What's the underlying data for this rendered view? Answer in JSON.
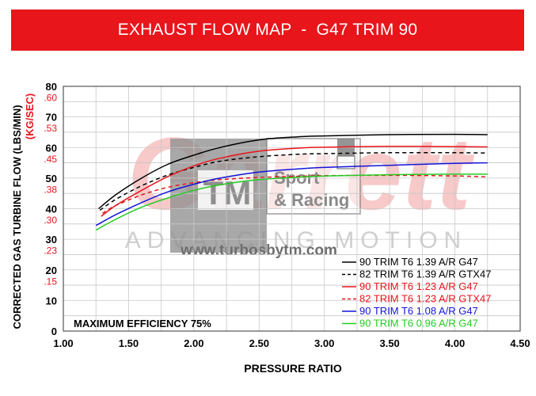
{
  "header": {
    "title": "EXHAUST FLOW MAP  -  G47 TRIM 90"
  },
  "colors": {
    "banner": "#e8151b",
    "black": "#000000",
    "red": "#e8151b",
    "blue": "#1414d8",
    "green": "#22cc22"
  },
  "watermark": {
    "brand": "Garrett",
    "tagline": "ADVANCING MOTION",
    "logo_mark": "TM",
    "logo_line1": "Sport",
    "logo_line2": "& Racing",
    "url": "www.turbosbytm.com"
  },
  "chart_data": {
    "type": "line",
    "xlabel": "PRESSURE RATIO",
    "ylabel": "CORRECTED GAS TURBINE FLOW (LBS/MIN)",
    "ylabel2": "(KG/SEC)",
    "xlim": [
      1.0,
      4.5
    ],
    "ylim": [
      0,
      80
    ],
    "x_ticks": [
      "1.00",
      "1.50",
      "2.00",
      "2.50",
      "3.00",
      "3.50",
      "4.00",
      "4.50"
    ],
    "y_ticks": [
      "0",
      "10",
      "20",
      "30",
      "40",
      "50",
      "60",
      "70",
      "80"
    ],
    "y2_ticks": [
      {
        "label": ".15",
        "at": 16.5
      },
      {
        "label": ".23",
        "at": 26.5
      },
      {
        "label": ".30",
        "at": 36.5
      },
      {
        "label": ".38",
        "at": 46.5
      },
      {
        "label": ".45",
        "at": 56.5
      },
      {
        "label": ".53",
        "at": 66.5
      },
      {
        "label": ".60",
        "at": 76.5
      }
    ],
    "annotation": "MAXIMUM EFFICIENCY 75%",
    "grid": true,
    "legend_position": "bottom-right",
    "series": [
      {
        "name": "90 TRIM T6 1.39 A/R G47",
        "color": "#000000",
        "dash": false,
        "x": [
          1.27,
          1.4,
          1.6,
          1.8,
          2.0,
          2.2,
          2.5,
          2.8,
          3.0,
          3.5,
          4.0,
          4.25
        ],
        "y": [
          40,
          44.5,
          50,
          54.5,
          57.5,
          60,
          62.5,
          63.5,
          63.8,
          64.2,
          64.3,
          64.2
        ]
      },
      {
        "name": "82 TRIM T6 1.39 A/R GTX47",
        "color": "#000000",
        "dash": true,
        "x": [
          1.28,
          1.4,
          1.6,
          1.8,
          2.0,
          2.2,
          2.5,
          2.8,
          3.0,
          3.5,
          4.0,
          4.25
        ],
        "y": [
          39.5,
          43,
          47.5,
          51,
          53.5,
          55.5,
          57,
          57.8,
          58,
          58.3,
          58.3,
          58.2
        ]
      },
      {
        "name": "90 TRIM T6 1.23 A/R G47",
        "color": "#e8151b",
        "dash": false,
        "x": [
          1.29,
          1.4,
          1.6,
          1.8,
          2.0,
          2.2,
          2.5,
          2.8,
          3.0,
          3.5,
          4.0,
          4.25
        ],
        "y": [
          37.5,
          41,
          46,
          50.5,
          54,
          56.5,
          58.8,
          59.8,
          60.1,
          60.4,
          60.3,
          60.2
        ]
      },
      {
        "name": "82 TRIM T6 1.23 A/R GTX47",
        "color": "#e8151b",
        "dash": true,
        "x": [
          1.3,
          1.4,
          1.6,
          1.8,
          2.0,
          2.2,
          2.5,
          2.8,
          3.0,
          3.5,
          4.0,
          4.25
        ],
        "y": [
          38.5,
          41,
          44.5,
          47,
          48.5,
          49.5,
          50.2,
          50.6,
          50.8,
          50.9,
          50.7,
          50.4
        ]
      },
      {
        "name": "90 TRIM T6 1.08 A/R G47",
        "color": "#1414d8",
        "dash": false,
        "x": [
          1.25,
          1.4,
          1.6,
          1.8,
          2.0,
          2.2,
          2.5,
          2.8,
          3.0,
          3.5,
          4.0,
          4.25
        ],
        "y": [
          34.5,
          38,
          42,
          45.5,
          48,
          50,
          52,
          53,
          53.5,
          54.2,
          54.8,
          55
        ]
      },
      {
        "name": "90 TRIM T6 0.96 A/R G47",
        "color": "#22cc22",
        "dash": false,
        "x": [
          1.25,
          1.4,
          1.6,
          1.8,
          2.0,
          2.2,
          2.5,
          2.8,
          3.0,
          3.5,
          4.0,
          4.25
        ],
        "y": [
          33,
          36.5,
          40.5,
          43.5,
          46,
          47.8,
          49.5,
          50.3,
          50.7,
          51.1,
          51.3,
          51.3
        ]
      }
    ]
  }
}
